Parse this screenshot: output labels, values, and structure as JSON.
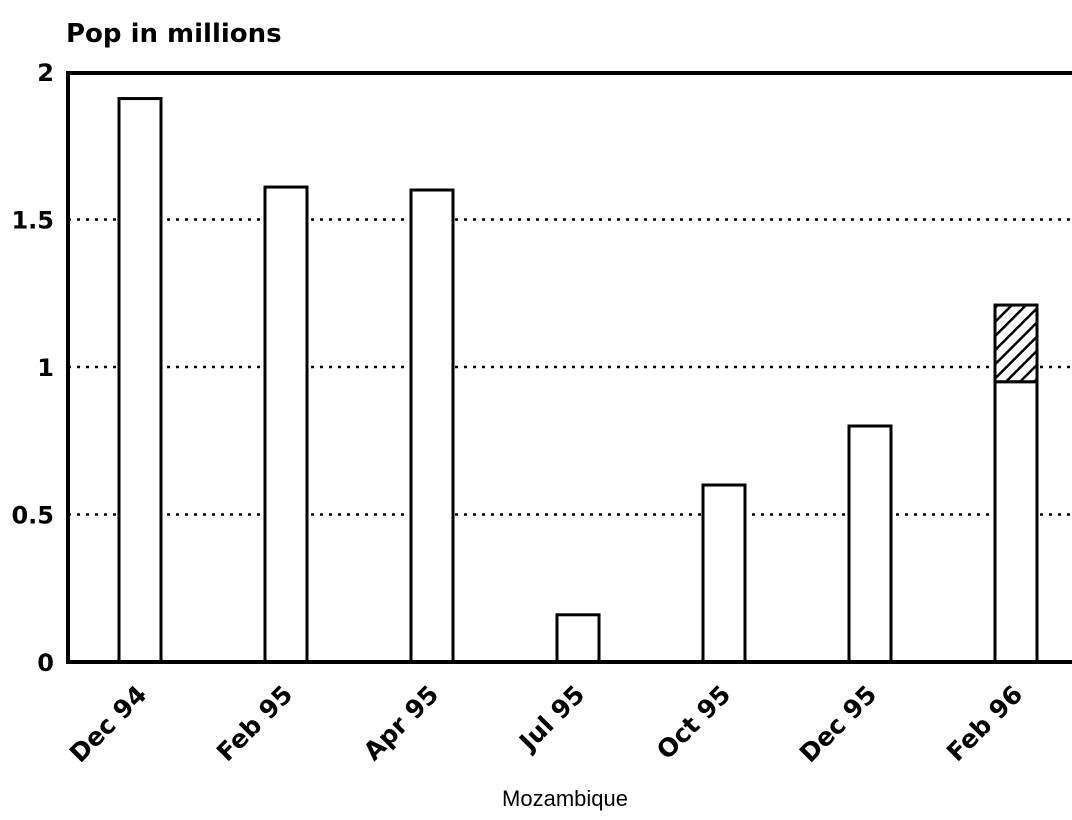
{
  "chart_data": {
    "type": "bar",
    "ylabel": "Pop in millions",
    "xlabel": "Mozambique",
    "categories": [
      "Dec 94",
      "Feb 95",
      "Apr 95",
      "Jul 95",
      "Oct 95",
      "Dec 95",
      "Feb 96"
    ],
    "series": [
      {
        "values": [
          1.91,
          1.61,
          1.6,
          0.16,
          0.6,
          0.8,
          0.95
        ],
        "pattern": "none"
      },
      {
        "values": [
          0,
          0,
          0,
          0,
          0,
          0,
          0.26
        ],
        "pattern": "hatched"
      }
    ],
    "y_ticks": [
      "0",
      "0.5",
      "1",
      "1.5",
      "2"
    ],
    "ylim": [
      0,
      2
    ],
    "grid": "dotted-horizontal",
    "legend": "none"
  }
}
